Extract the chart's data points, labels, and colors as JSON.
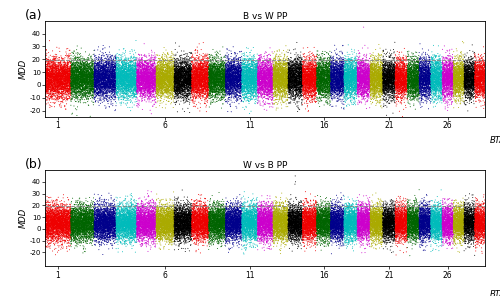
{
  "title_a": "B vs W PP",
  "title_b": "W vs B PP",
  "xlabel": "BTA",
  "ylabel": "MDD",
  "n_chromosomes": 29,
  "chr_snp_counts": [
    3000,
    2700,
    2550,
    2400,
    2250,
    2100,
    2040,
    1980,
    1950,
    1890,
    1830,
    1800,
    1740,
    1680,
    1650,
    1620,
    1560,
    1530,
    1500,
    1470,
    1440,
    1410,
    1380,
    1350,
    1320,
    1290,
    1260,
    1230,
    1200
  ],
  "colors": [
    "#EE0000",
    "#006400",
    "#00008B",
    "#00BBBB",
    "#CC00CC",
    "#AAAA00",
    "#000000",
    "#EE0000",
    "#006400",
    "#00008B",
    "#00BBBB",
    "#CC00CC",
    "#AAAA00",
    "#000000",
    "#EE0000",
    "#006400",
    "#00008B",
    "#00BBBB",
    "#CC00CC",
    "#AAAA00",
    "#000000",
    "#EE0000",
    "#006400",
    "#00008B",
    "#00BBBB",
    "#CC00CC",
    "#AAAA00",
    "#000000",
    "#EE0000"
  ],
  "ylim_a": [
    -25,
    50
  ],
  "ylim_b": [
    -32,
    50
  ],
  "yticks_a": [
    -20,
    -10,
    0,
    10,
    20,
    30,
    40
  ],
  "yticks_b": [
    -20,
    -10,
    0,
    10,
    20,
    30,
    40
  ],
  "chebyshev_line": 19.5,
  "marker_size": 0.5,
  "xtick_positions": [
    1,
    6,
    11,
    16,
    21,
    26
  ],
  "label_a": "(a)",
  "label_b": "(b)",
  "mean_a": 5.0,
  "std_a": 7.5,
  "mean_b": 5.0,
  "std_b": 7.5
}
